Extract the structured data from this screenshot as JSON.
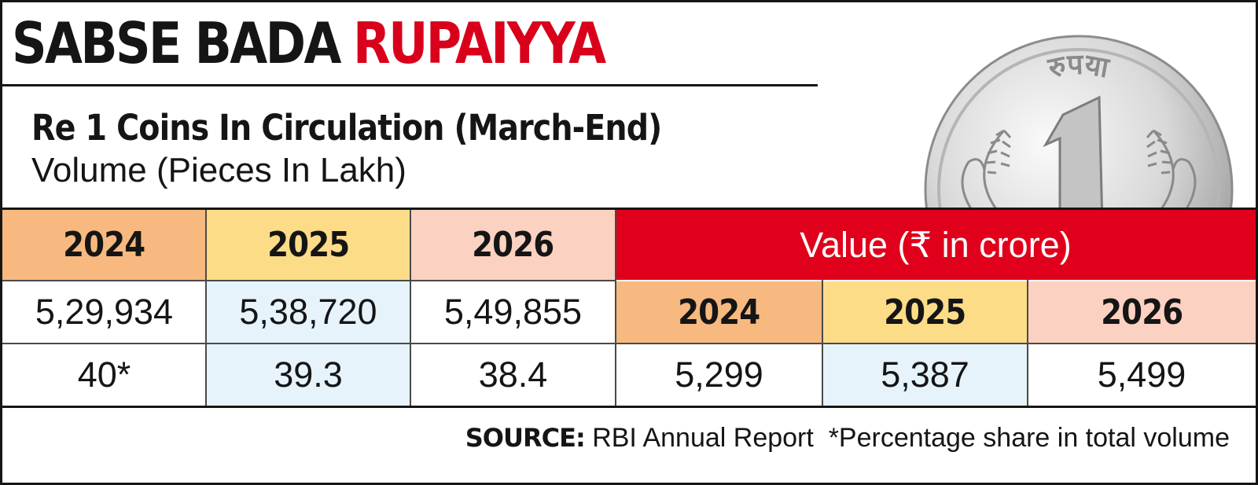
{
  "title": {
    "part1": "SABSE BADA",
    "part2": "RUPAIYYA"
  },
  "subtitle": "Re 1 Coins In Circulation (March-End)",
  "unit_label": "Volume (Pieces In Lakh)",
  "coin_inscription": "रुपया",
  "colors": {
    "accent_red": "#e0001b",
    "y2024": "#f7b97f",
    "y2025": "#fddc88",
    "y2026": "#fbd2c1",
    "highlight_blue": "#e6f3fb"
  },
  "chart_data": {
    "type": "table",
    "volume": {
      "years": [
        "2024",
        "2025",
        "2026"
      ],
      "pieces_in_lakh": [
        "5,29,934",
        "5,38,720",
        "5,49,855"
      ],
      "share": [
        "40*",
        "39.3",
        "38.4"
      ]
    },
    "value": {
      "header": "Value (₹ in crore)",
      "years": [
        "2024",
        "2025",
        "2026"
      ],
      "values": [
        "5,299",
        "5,387",
        "5,499"
      ]
    }
  },
  "footer": {
    "source_label": "SOURCE:",
    "source_text": " RBI Annual Report  *Percentage share in total volume"
  }
}
